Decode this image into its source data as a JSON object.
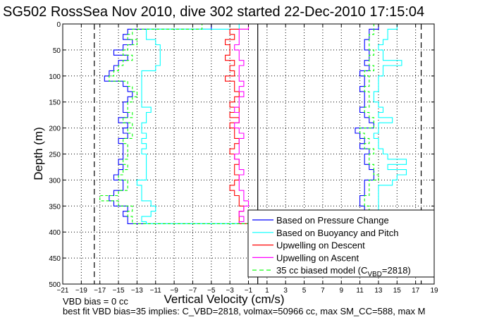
{
  "chart_data": {
    "type": "line",
    "title": "SG502 RossSea Nov 2010, dive 302 started 22-Dec-2010 17:15:04",
    "xlabel": "Vertical Velocity (cm/s)",
    "ylabel": "Depth (m)",
    "xlim": [
      -21,
      19
    ],
    "ylim": [
      0,
      500
    ],
    "y_reversed": true,
    "grid": true,
    "xticks": [
      -21,
      -19,
      -17,
      -15,
      -13,
      -11,
      -9,
      -7,
      -5,
      -3,
      -1,
      1,
      3,
      5,
      7,
      9,
      11,
      13,
      15,
      17,
      19
    ],
    "yticks": [
      0,
      50,
      100,
      150,
      200,
      250,
      300,
      350,
      400,
      450,
      500
    ],
    "legend_placement": "bottom-right",
    "reference_lines": {
      "zero": 0,
      "model_limits": [
        -17.6,
        17.6
      ]
    },
    "depths": [
      0,
      10,
      20,
      30,
      40,
      50,
      60,
      70,
      80,
      90,
      100,
      110,
      120,
      130,
      140,
      150,
      160,
      170,
      180,
      190,
      200,
      210,
      220,
      230,
      240,
      250,
      260,
      270,
      280,
      290,
      300,
      310,
      320,
      330,
      340,
      350,
      360,
      370,
      380
    ],
    "series": [
      {
        "name": "Based on Pressure Change",
        "color": "#0000ff",
        "dash": false,
        "descent": [
          -5,
          -14,
          -14.5,
          -13.5,
          -14.5,
          -15.5,
          -14,
          -15,
          -15.5,
          -16,
          -16.5,
          -14.5,
          -14,
          -13.5,
          -14,
          -14.5,
          -14.5,
          -14,
          -15,
          -14,
          -14.5,
          -14,
          -15,
          -14.5,
          -14.5,
          -14.5,
          -15,
          -14.5,
          -15,
          -15.5,
          -14.5,
          -14.5,
          -15.5,
          -16,
          -15.5,
          -14,
          -14.5,
          -14,
          -14
        ],
        "ascent": [
          13,
          12,
          12,
          11.5,
          11.5,
          12,
          12,
          11.5,
          12,
          11,
          11.5,
          11.5,
          11,
          11.5,
          11.5,
          11.5,
          11,
          11.5,
          12,
          12.5,
          10.5,
          11,
          11.5,
          11,
          12,
          11.5,
          11.5,
          12,
          12.5,
          12.5,
          11.5,
          11.5,
          11.5,
          11,
          11,
          11.5,
          11.5,
          11,
          11
        ]
      },
      {
        "name": "Based on Buoyancy and Pitch",
        "color": "#00ffff",
        "dash": false,
        "descent": [
          -2,
          -12,
          -12,
          -11,
          -10.5,
          -10.5,
          -10.5,
          -10.5,
          -11,
          -12.5,
          -12.5,
          -12.5,
          -12.5,
          -12.5,
          -12.5,
          -12.5,
          -11.5,
          -12,
          -12,
          -12.5,
          -12.5,
          -12,
          -12.5,
          -12,
          -12.5,
          -12,
          -12,
          -12,
          -12,
          -12,
          -13,
          -12.5,
          -12.5,
          -12.5,
          -11.5,
          -11,
          -11.5,
          -12.5,
          -12
        ],
        "ascent": [
          15,
          14,
          14,
          13.5,
          13,
          13.5,
          13.5,
          15.5,
          13.5,
          13.5,
          13,
          13,
          13,
          12.5,
          12.5,
          13,
          13.5,
          13,
          14.5,
          13,
          13,
          12.5,
          13,
          13,
          13.5,
          14,
          16,
          14,
          16,
          15,
          14.5,
          13,
          13,
          13,
          13,
          13,
          13,
          13,
          14
        ]
      },
      {
        "name": "Upwelling on Descent",
        "color": "#ff0000",
        "dash": false,
        "descent": [
          -1,
          -3,
          -2.5,
          -3.5,
          -3,
          -3,
          -3.5,
          -2.5,
          -3,
          -2.5,
          -3.5,
          -2.5,
          -2.5,
          -2,
          -2.5,
          -3,
          -2,
          -3,
          -2,
          -3,
          -2.5,
          -2.5,
          -2,
          -2.5,
          -3,
          -2.5,
          -2,
          -2.5,
          -2.5,
          -2,
          -2.5,
          -3,
          -2.5,
          -2,
          -2,
          -1.5,
          -2,
          -2,
          -2
        ]
      },
      {
        "name": "Upwelling on Ascent",
        "color": "#ff00ff",
        "dash": false,
        "ascent": [
          -1,
          -2,
          -2,
          -2,
          -2.5,
          -2,
          -2,
          -1.5,
          -2,
          -2,
          -2,
          -1.5,
          -2,
          -1.5,
          -2,
          -2,
          -2.5,
          -2,
          -2,
          -2.5,
          -2,
          -1.5,
          -2,
          -2,
          -2,
          -2.5,
          -2,
          -2,
          -1.5,
          -2,
          -2,
          -2,
          -1.5,
          -1.5,
          -1,
          -1.5,
          -2,
          -1.5,
          -2
        ]
      },
      {
        "name": "35 cc biased model (C",
        "name_sub": "VBD",
        "name_tail": "=2818)",
        "color": "#00ff00",
        "dash": true,
        "descent": [
          -6,
          -13.5,
          -14,
          -13,
          -14,
          -14.5,
          -13.5,
          -14.5,
          -15,
          -15.5,
          -16,
          -14,
          -13.5,
          -13,
          -13.5,
          -14,
          -14,
          -13.5,
          -14.5,
          -13.5,
          -14,
          -13.5,
          -14.5,
          -14,
          -14,
          -14,
          -14.5,
          -14,
          -14.5,
          -15,
          -14,
          -14,
          -15,
          -17,
          -15,
          -13.5,
          -14,
          -13.5,
          -13.5
        ],
        "ascent": [
          12.5,
          12.5,
          12,
          12,
          12,
          12.5,
          12,
          12,
          12.5,
          11.5,
          12,
          12,
          11.5,
          12,
          12,
          12,
          11.5,
          12,
          12.5,
          12.5,
          11,
          11.5,
          12,
          11.5,
          12.5,
          12,
          12,
          12.5,
          12.5,
          13,
          12,
          12,
          12,
          11.5,
          11.5,
          12,
          12,
          11.5,
          11.5
        ]
      }
    ],
    "annotations": [
      "VBD bias = 0 cc",
      "best fit VBD bias=35 implies: C_VBD=2818, volmax=50966 cc, max SM_CC=588, max M"
    ]
  }
}
